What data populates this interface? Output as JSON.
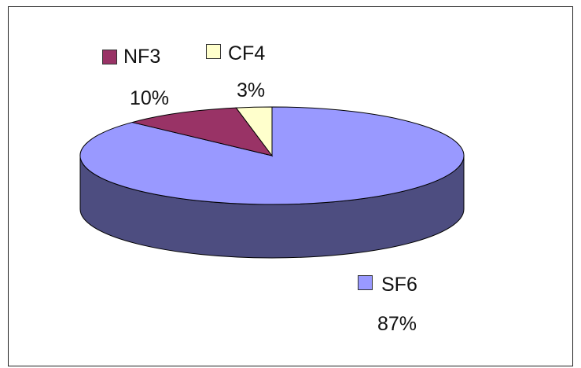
{
  "chart_data": {
    "type": "pie",
    "style": "3d",
    "slices": [
      {
        "label": "SF6",
        "value": 87,
        "percent_label": "87%",
        "color": "#9999ff"
      },
      {
        "label": "NF3",
        "value": 10,
        "percent_label": "10%",
        "color": "#993366"
      },
      {
        "label": "CF4",
        "value": 3,
        "percent_label": "3%",
        "color": "#ffffcc"
      }
    ],
    "side_color": "#4d4d80",
    "edge_color": "#000000",
    "start_angle_deg": 90,
    "direction": "clockwise",
    "legend": "none"
  }
}
